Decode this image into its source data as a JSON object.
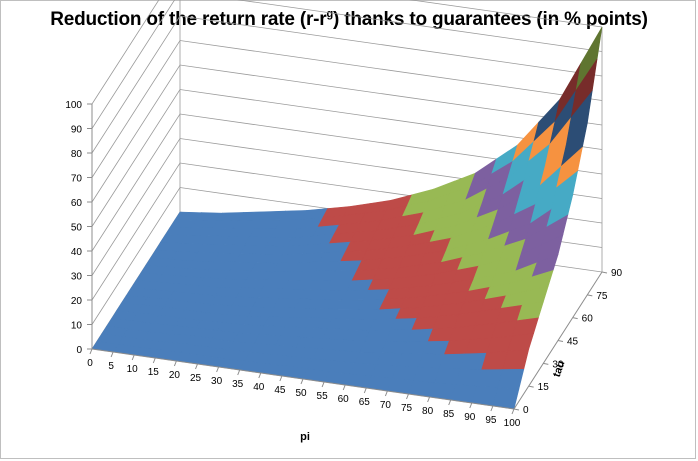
{
  "chart_data": {
    "type": "surface",
    "title": {
      "prefix": "Reduction of the return rate (r-r",
      "superscript": "g",
      "suffix": ") thanks to guarantees (in % points)"
    },
    "xlabel": "pi",
    "ylabel": "tau",
    "x_ticks": [
      "0",
      "5",
      "10",
      "15",
      "20",
      "25",
      "30",
      "35",
      "40",
      "45",
      "50",
      "55",
      "60",
      "65",
      "70",
      "75",
      "80",
      "85",
      "90",
      "95",
      "100"
    ],
    "y_ticks": [
      "0",
      "15",
      "30",
      "45",
      "60",
      "75",
      "90"
    ],
    "z_ticks": [
      "0",
      "10",
      "20",
      "30",
      "40",
      "50",
      "60",
      "70",
      "80",
      "90",
      "100"
    ],
    "xlim": [
      0,
      100
    ],
    "ylim": [
      0,
      90
    ],
    "zlim": [
      0,
      100
    ],
    "grid": true,
    "bands": [
      {
        "range": [
          0,
          10
        ],
        "color": "#4a7ebb"
      },
      {
        "range": [
          10,
          20
        ],
        "color": "#be4b48"
      },
      {
        "range": [
          20,
          30
        ],
        "color": "#98b954"
      },
      {
        "range": [
          30,
          40
        ],
        "color": "#7d60a0"
      },
      {
        "range": [
          40,
          50
        ],
        "color": "#46aac5"
      },
      {
        "range": [
          50,
          60
        ],
        "color": "#f69240"
      },
      {
        "range": [
          60,
          70
        ],
        "color": "#2c4d75"
      },
      {
        "range": [
          70,
          80
        ],
        "color": "#772c2a"
      },
      {
        "range": [
          80,
          90
        ],
        "color": "#5f7530"
      },
      {
        "range": [
          90,
          100
        ],
        "color": "#4d3b62"
      }
    ],
    "surface": {
      "description_values": "approximate reduction in percentage points at grid (tau rows, pi columns)",
      "pi": [
        0,
        10,
        20,
        30,
        40,
        50,
        60,
        70,
        80,
        90,
        100
      ],
      "tau": [
        0,
        15,
        30,
        45,
        60,
        75,
        90
      ],
      "values": [
        [
          0,
          0,
          0,
          0,
          0,
          0,
          0,
          0,
          0,
          0,
          0
        ],
        [
          0,
          0,
          1,
          1,
          2,
          3,
          4,
          6,
          8,
          11,
          15
        ],
        [
          0,
          1,
          1,
          2,
          4,
          6,
          8,
          11,
          15,
          20,
          25
        ],
        [
          0,
          1,
          2,
          4,
          6,
          8,
          11,
          15,
          20,
          26,
          35
        ],
        [
          0,
          1,
          3,
          5,
          8,
          11,
          15,
          20,
          27,
          36,
          50
        ],
        [
          0,
          2,
          4,
          6,
          10,
          14,
          19,
          26,
          36,
          50,
          70
        ],
        [
          0,
          2,
          5,
          8,
          12,
          17,
          24,
          33,
          47,
          68,
          100
        ]
      ]
    }
  }
}
